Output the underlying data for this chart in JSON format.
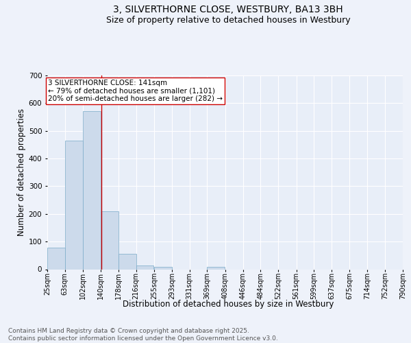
{
  "title_line1": "3, SILVERTHORNE CLOSE, WESTBURY, BA13 3BH",
  "title_line2": "Size of property relative to detached houses in Westbury",
  "xlabel": "Distribution of detached houses by size in Westbury",
  "ylabel": "Number of detached properties",
  "bar_color": "#ccdaeb",
  "bar_edge_color": "#7aaac8",
  "background_color": "#e8eef8",
  "grid_color": "#ffffff",
  "fig_background": "#eef2fa",
  "vline_x": 141,
  "vline_color": "#cc0000",
  "annotation_text": "3 SILVERTHORNE CLOSE: 141sqm\n← 79% of detached houses are smaller (1,101)\n20% of semi-detached houses are larger (282) →",
  "annotation_box_color": "#ffffff",
  "annotation_box_edge": "#cc0000",
  "bin_edges": [
    25,
    63,
    102,
    140,
    178,
    216,
    255,
    293,
    331,
    369,
    408,
    446,
    484,
    522,
    561,
    599,
    637,
    675,
    714,
    752,
    790
  ],
  "bin_heights": [
    78,
    465,
    570,
    209,
    55,
    14,
    8,
    0,
    0,
    8,
    0,
    0,
    0,
    0,
    0,
    0,
    0,
    0,
    0,
    0
  ],
  "tick_labels": [
    "25sqm",
    "63sqm",
    "102sqm",
    "140sqm",
    "178sqm",
    "216sqm",
    "255sqm",
    "293sqm",
    "331sqm",
    "369sqm",
    "408sqm",
    "446sqm",
    "484sqm",
    "522sqm",
    "561sqm",
    "599sqm",
    "637sqm",
    "675sqm",
    "714sqm",
    "752sqm",
    "790sqm"
  ],
  "ylim": [
    0,
    700
  ],
  "yticks": [
    0,
    100,
    200,
    300,
    400,
    500,
    600,
    700
  ],
  "footer_text": "Contains HM Land Registry data © Crown copyright and database right 2025.\nContains public sector information licensed under the Open Government Licence v3.0.",
  "title_fontsize": 10,
  "subtitle_fontsize": 9,
  "axis_label_fontsize": 8.5,
  "tick_fontsize": 7,
  "footer_fontsize": 6.5,
  "annot_fontsize": 7.5
}
